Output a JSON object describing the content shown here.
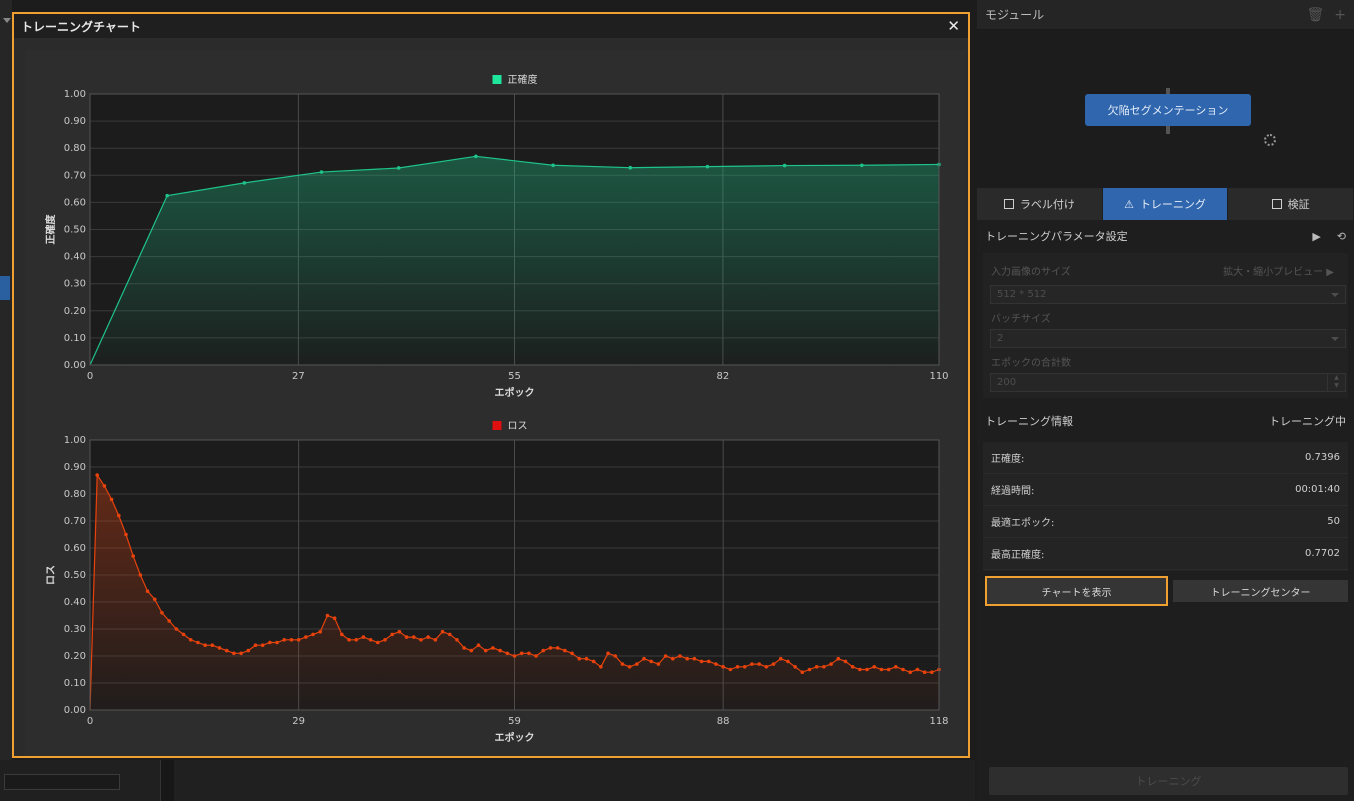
{
  "modal": {
    "title": "トレーニングチャート",
    "close": "✕"
  },
  "accuracy_chart": {
    "legend": "正確度",
    "ylabel": "正確度",
    "xlabel": "エポック",
    "series_color": "#1ec48a",
    "legend_color": "#1ee69c",
    "xticks": [
      "0",
      "27",
      "55",
      "82",
      "110"
    ],
    "yticks": [
      "0.00",
      "0.10",
      "0.20",
      "0.30",
      "0.40",
      "0.50",
      "0.60",
      "0.70",
      "0.80",
      "0.90",
      "1.00"
    ]
  },
  "loss_chart": {
    "legend": "ロス",
    "ylabel": "ロス",
    "xlabel": "エポック",
    "series_color": "#e8420c",
    "legend_color": "#e01010",
    "xticks": [
      "0",
      "29",
      "59",
      "88",
      "118"
    ],
    "yticks": [
      "0.00",
      "0.10",
      "0.20",
      "0.30",
      "0.40",
      "0.50",
      "0.60",
      "0.70",
      "0.80",
      "0.90",
      "1.00"
    ]
  },
  "chart_data": [
    {
      "type": "area",
      "title": "",
      "legend": "正確度",
      "xlabel": "エポック",
      "ylabel": "正確度",
      "xlim": [
        0,
        110
      ],
      "ylim": [
        0,
        1
      ],
      "grid": true,
      "legend_position": "top-center",
      "series": [
        {
          "name": "正確度",
          "x": [
            0,
            10,
            20,
            30,
            40,
            50,
            60,
            70,
            80,
            90,
            100,
            110
          ],
          "y": [
            0.0,
            0.625,
            0.672,
            0.712,
            0.727,
            0.77,
            0.737,
            0.728,
            0.732,
            0.736,
            0.737,
            0.74
          ]
        }
      ]
    },
    {
      "type": "area",
      "title": "",
      "legend": "ロス",
      "xlabel": "エポック",
      "ylabel": "ロス",
      "xlim": [
        0,
        118
      ],
      "ylim": [
        0,
        1
      ],
      "grid": true,
      "legend_position": "top-center",
      "series": [
        {
          "name": "ロス",
          "x": [
            0,
            1,
            2,
            3,
            4,
            5,
            6,
            7,
            8,
            9,
            10,
            11,
            12,
            13,
            14,
            15,
            16,
            17,
            18,
            19,
            20,
            21,
            22,
            23,
            24,
            25,
            26,
            27,
            28,
            29,
            30,
            31,
            32,
            33,
            34,
            35,
            36,
            37,
            38,
            39,
            40,
            41,
            42,
            43,
            44,
            45,
            46,
            47,
            48,
            49,
            50,
            51,
            52,
            53,
            54,
            55,
            56,
            57,
            58,
            59,
            60,
            61,
            62,
            63,
            64,
            65,
            66,
            67,
            68,
            69,
            70,
            71,
            72,
            73,
            74,
            75,
            76,
            77,
            78,
            79,
            80,
            81,
            82,
            83,
            84,
            85,
            86,
            87,
            88,
            89,
            90,
            91,
            92,
            93,
            94,
            95,
            96,
            97,
            98,
            99,
            100,
            101,
            102,
            103,
            104,
            105,
            106,
            107,
            108,
            109,
            110,
            111,
            112,
            113,
            114,
            115,
            116,
            117,
            118
          ],
          "y": [
            0.0,
            0.87,
            0.83,
            0.78,
            0.72,
            0.65,
            0.57,
            0.5,
            0.44,
            0.41,
            0.36,
            0.33,
            0.3,
            0.28,
            0.26,
            0.25,
            0.24,
            0.24,
            0.23,
            0.22,
            0.21,
            0.21,
            0.22,
            0.24,
            0.24,
            0.25,
            0.25,
            0.26,
            0.26,
            0.26,
            0.27,
            0.28,
            0.29,
            0.35,
            0.34,
            0.28,
            0.26,
            0.26,
            0.27,
            0.26,
            0.25,
            0.26,
            0.28,
            0.29,
            0.27,
            0.27,
            0.26,
            0.27,
            0.26,
            0.29,
            0.28,
            0.26,
            0.23,
            0.22,
            0.24,
            0.22,
            0.23,
            0.22,
            0.21,
            0.2,
            0.21,
            0.21,
            0.2,
            0.22,
            0.23,
            0.23,
            0.22,
            0.21,
            0.19,
            0.19,
            0.18,
            0.16,
            0.21,
            0.2,
            0.17,
            0.16,
            0.17,
            0.19,
            0.18,
            0.17,
            0.2,
            0.19,
            0.2,
            0.19,
            0.19,
            0.18,
            0.18,
            0.17,
            0.16,
            0.15,
            0.16,
            0.16,
            0.17,
            0.17,
            0.16,
            0.17,
            0.19,
            0.18,
            0.16,
            0.14,
            0.15,
            0.16,
            0.16,
            0.17,
            0.19,
            0.18,
            0.16,
            0.15,
            0.15,
            0.16,
            0.15,
            0.15,
            0.16,
            0.15,
            0.14,
            0.15,
            0.14,
            0.14,
            0.15
          ]
        }
      ]
    }
  ],
  "right_panel": {
    "module_title": "モジュール",
    "node_label": "欠陥セグメンテーション",
    "tabs": [
      {
        "label": "ラベル付け"
      },
      {
        "label": "トレーニング"
      },
      {
        "label": "検証"
      }
    ],
    "params_title": "トレーニングパラメータ設定",
    "params": {
      "input_size_label": "入力画像のサイズ",
      "preview_link": "拡大・縮小プレビュー ▶",
      "input_size_value": "512 * 512",
      "batch_label": "バッチサイズ",
      "batch_value": "2",
      "epochs_label": "エポックの合計数",
      "epochs_value": "200"
    },
    "info_title": "トレーニング情報",
    "info_status": "トレーニング中",
    "info": [
      {
        "label": "正確度:",
        "value": "0.7396"
      },
      {
        "label": "経過時間:",
        "value": "00:01:40"
      },
      {
        "label": "最適エポック:",
        "value": "50"
      },
      {
        "label": "最高正確度:",
        "value": "0.7702"
      }
    ],
    "show_chart_btn": "チャートを表示",
    "training_center_btn": "トレーニングセンター",
    "train_btn": "トレーニング"
  }
}
